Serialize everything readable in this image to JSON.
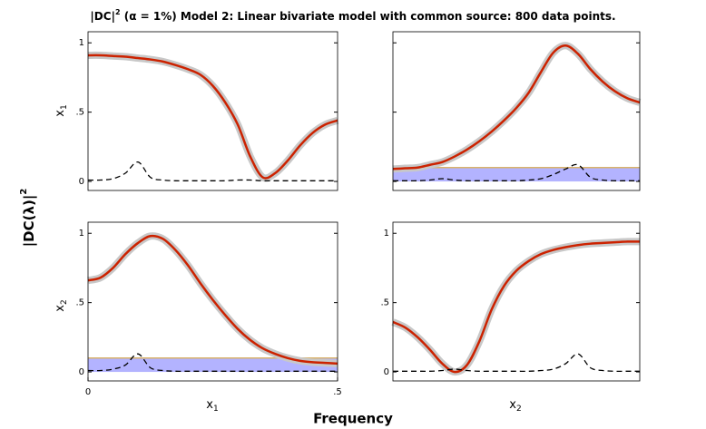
{
  "figure": {
    "title": {
      "base": "|DC|",
      "sup": "2",
      "rest": " (α = 1%) Model 2: Linear bivariate model with common source: 800 data points."
    },
    "ylabel": {
      "base": "|DC(λ)|",
      "sup": "2"
    },
    "xlabel": "Frequency",
    "row_labels": [
      {
        "base": "x",
        "sub": "1"
      },
      {
        "base": "x",
        "sub": "2"
      }
    ],
    "col_labels": [
      {
        "base": "x",
        "sub": "1"
      },
      {
        "base": "x",
        "sub": "2"
      }
    ]
  },
  "chart_data": [
    {
      "type": "line",
      "x": [
        0,
        0.025,
        0.05,
        0.075,
        0.1,
        0.125,
        0.15,
        0.175,
        0.2,
        0.225,
        0.25,
        0.275,
        0.3,
        0.325,
        0.35,
        0.375,
        0.4,
        0.425,
        0.45,
        0.475,
        0.5
      ],
      "xlim": [
        0,
        0.5
      ],
      "ylim": [
        -0.065,
        1.08
      ],
      "yticks": [
        0,
        {
          "value": 0.5,
          "label": ".5"
        },
        1
      ],
      "series": [
        {
          "color": "#cc2200",
          "band_color": "#c8c8c8",
          "values": [
            0.91,
            0.91,
            0.905,
            0.9,
            0.89,
            0.88,
            0.865,
            0.84,
            0.81,
            0.77,
            0.69,
            0.57,
            0.41,
            0.18,
            0.03,
            0.06,
            0.15,
            0.26,
            0.35,
            0.41,
            0.44
          ]
        },
        {
          "color": "#000000",
          "dashed": true,
          "values": [
            0.01,
            0.01,
            0.02,
            0.06,
            0.14,
            0.03,
            0.01,
            0.005,
            0.005,
            0.005,
            0.005,
            0.005,
            0.01,
            0.01,
            0.005,
            0.005,
            0.005,
            0.005,
            0.005,
            0.005,
            0.005
          ]
        }
      ]
    },
    {
      "type": "line",
      "x": [
        0,
        0.025,
        0.05,
        0.075,
        0.1,
        0.125,
        0.15,
        0.175,
        0.2,
        0.225,
        0.25,
        0.275,
        0.3,
        0.325,
        0.35,
        0.375,
        0.4,
        0.425,
        0.45,
        0.475,
        0.5
      ],
      "xlim": [
        0,
        0.5
      ],
      "ylim": [
        -0.065,
        1.08
      ],
      "yticks": [
        0,
        0.5,
        1
      ],
      "ytick_labels": false,
      "threshold": {
        "value": 0.1,
        "color": "#d9b36b",
        "fill": "#b3b3ff"
      },
      "series": [
        {
          "color": "#cc2200",
          "band_color": "#c8c8c8",
          "values": [
            0.09,
            0.095,
            0.1,
            0.12,
            0.14,
            0.18,
            0.23,
            0.29,
            0.36,
            0.44,
            0.53,
            0.64,
            0.79,
            0.93,
            0.98,
            0.92,
            0.81,
            0.72,
            0.65,
            0.6,
            0.57
          ]
        },
        {
          "color": "#000000",
          "dashed": true,
          "values": [
            0.005,
            0.005,
            0.005,
            0.01,
            0.02,
            0.01,
            0.005,
            0.005,
            0.005,
            0.005,
            0.005,
            0.01,
            0.02,
            0.05,
            0.09,
            0.12,
            0.03,
            0.01,
            0.005,
            0.005,
            0.005
          ]
        }
      ]
    },
    {
      "type": "line",
      "x": [
        0,
        0.025,
        0.05,
        0.075,
        0.1,
        0.125,
        0.15,
        0.175,
        0.2,
        0.225,
        0.25,
        0.275,
        0.3,
        0.325,
        0.35,
        0.375,
        0.4,
        0.425,
        0.45,
        0.475,
        0.5
      ],
      "xlim": [
        0,
        0.5
      ],
      "ylim": [
        -0.065,
        1.08
      ],
      "yticks": [
        0,
        {
          "value": 0.5,
          "label": ".5"
        },
        1
      ],
      "xticks": [
        0,
        {
          "value": 0.5,
          "label": ".5"
        }
      ],
      "threshold": {
        "value": 0.1,
        "color": "#d9b36b",
        "fill": "#b3b3ff"
      },
      "series": [
        {
          "color": "#cc2200",
          "band_color": "#c8c8c8",
          "values": [
            0.66,
            0.68,
            0.75,
            0.85,
            0.93,
            0.98,
            0.96,
            0.88,
            0.77,
            0.64,
            0.52,
            0.41,
            0.31,
            0.23,
            0.17,
            0.13,
            0.1,
            0.08,
            0.07,
            0.065,
            0.06
          ]
        },
        {
          "color": "#000000",
          "dashed": true,
          "values": [
            0.01,
            0.01,
            0.02,
            0.05,
            0.13,
            0.03,
            0.01,
            0.005,
            0.005,
            0.005,
            0.005,
            0.005,
            0.005,
            0.005,
            0.005,
            0.005,
            0.005,
            0.005,
            0.005,
            0.005,
            0.005
          ]
        }
      ]
    },
    {
      "type": "line",
      "x": [
        0,
        0.025,
        0.05,
        0.075,
        0.1,
        0.125,
        0.15,
        0.175,
        0.2,
        0.225,
        0.25,
        0.275,
        0.3,
        0.325,
        0.35,
        0.375,
        0.4,
        0.425,
        0.45,
        0.475,
        0.5
      ],
      "xlim": [
        0,
        0.5
      ],
      "ylim": [
        -0.065,
        1.08
      ],
      "yticks": [
        0,
        {
          "value": 0.5,
          "label": ".5"
        },
        1
      ],
      "series": [
        {
          "color": "#cc2200",
          "band_color": "#c8c8c8",
          "values": [
            0.36,
            0.32,
            0.25,
            0.16,
            0.06,
            0.0,
            0.05,
            0.22,
            0.45,
            0.62,
            0.73,
            0.8,
            0.85,
            0.88,
            0.9,
            0.915,
            0.925,
            0.93,
            0.935,
            0.94,
            0.94
          ]
        },
        {
          "color": "#000000",
          "dashed": true,
          "values": [
            0.005,
            0.005,
            0.005,
            0.005,
            0.01,
            0.02,
            0.01,
            0.005,
            0.005,
            0.005,
            0.005,
            0.005,
            0.01,
            0.02,
            0.06,
            0.13,
            0.03,
            0.01,
            0.005,
            0.005,
            0.005
          ]
        }
      ]
    }
  ]
}
